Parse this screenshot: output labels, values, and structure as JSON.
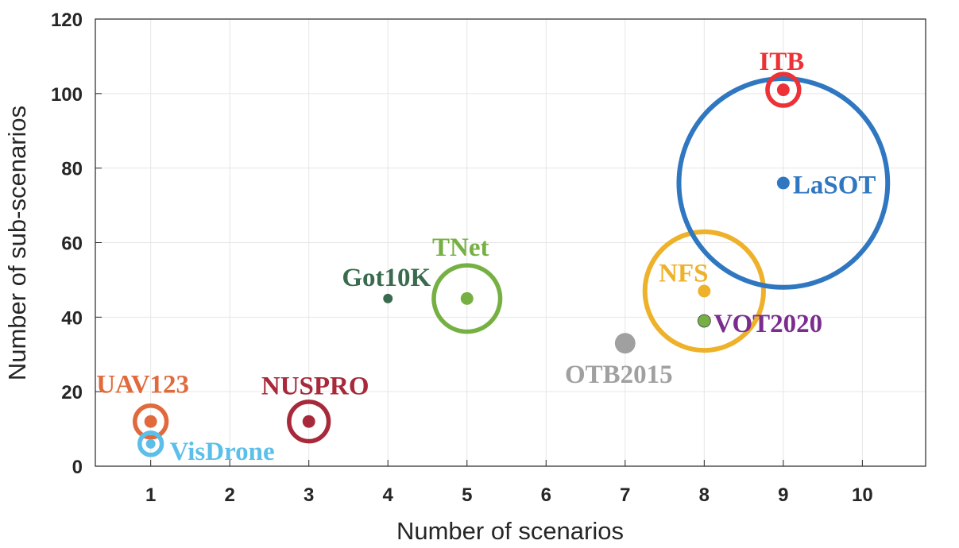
{
  "chart_data": {
    "type": "scatter",
    "xlabel": "Number of scenarios",
    "ylabel": "Number of sub-scenarios",
    "xlim": [
      0.3,
      10.8
    ],
    "ylim": [
      0,
      120
    ],
    "xticks": [
      1,
      2,
      3,
      4,
      5,
      6,
      7,
      8,
      9,
      10
    ],
    "yticks": [
      0,
      20,
      40,
      60,
      80,
      100,
      120
    ],
    "grid": true,
    "points": [
      {
        "name": "UAV123",
        "x": 1,
        "y": 12,
        "color": "#e06a3c",
        "ring_radius_x": 0.2,
        "dot_radius_x": 0.08,
        "outer_fill": false
      },
      {
        "name": "VisDrone",
        "x": 1,
        "y": 6,
        "color": "#5bbfe9",
        "ring_radius_x": 0.14,
        "dot_radius_x": 0.06,
        "outer_fill": false
      },
      {
        "name": "NUSPRO",
        "x": 3,
        "y": 12,
        "color": "#a7293a",
        "ring_radius_x": 0.25,
        "dot_radius_x": 0.08,
        "outer_fill": false
      },
      {
        "name": "Got10K",
        "x": 4,
        "y": 45,
        "color": "#3a6b4e",
        "ring_radius_x": 0,
        "dot_radius_x": 0.06,
        "outer_fill": false
      },
      {
        "name": "TNet",
        "x": 5,
        "y": 45,
        "color": "#76b043",
        "ring_radius_x": 0.42,
        "dot_radius_x": 0.08,
        "outer_fill": false
      },
      {
        "name": "OTB2015",
        "x": 7,
        "y": 33,
        "color": "#a0a0a0",
        "ring_radius_x": 0,
        "dot_radius_x": 0.13,
        "outer_fill": true
      },
      {
        "name": "NFS",
        "x": 8,
        "y": 47,
        "color": "#eeb12a",
        "ring_radius_x": 0.75,
        "dot_radius_x": 0.08,
        "outer_fill": false
      },
      {
        "name": "VOT2020",
        "x": 8,
        "y": 39,
        "color": "#7b2d8e",
        "ring_radius_x": 0,
        "dot_radius_x": 0.08,
        "outer_fill": false,
        "dot_fill": "#76b043"
      },
      {
        "name": "LaSOT",
        "x": 9,
        "y": 76,
        "color": "#2f77c0",
        "ring_radius_x": 1.32,
        "dot_radius_x": 0.08,
        "outer_fill": false
      },
      {
        "name": "ITB",
        "x": 9,
        "y": 101,
        "color": "#ec3236",
        "ring_radius_x": 0.2,
        "dot_radius_x": 0.08,
        "outer_fill": false
      }
    ]
  }
}
